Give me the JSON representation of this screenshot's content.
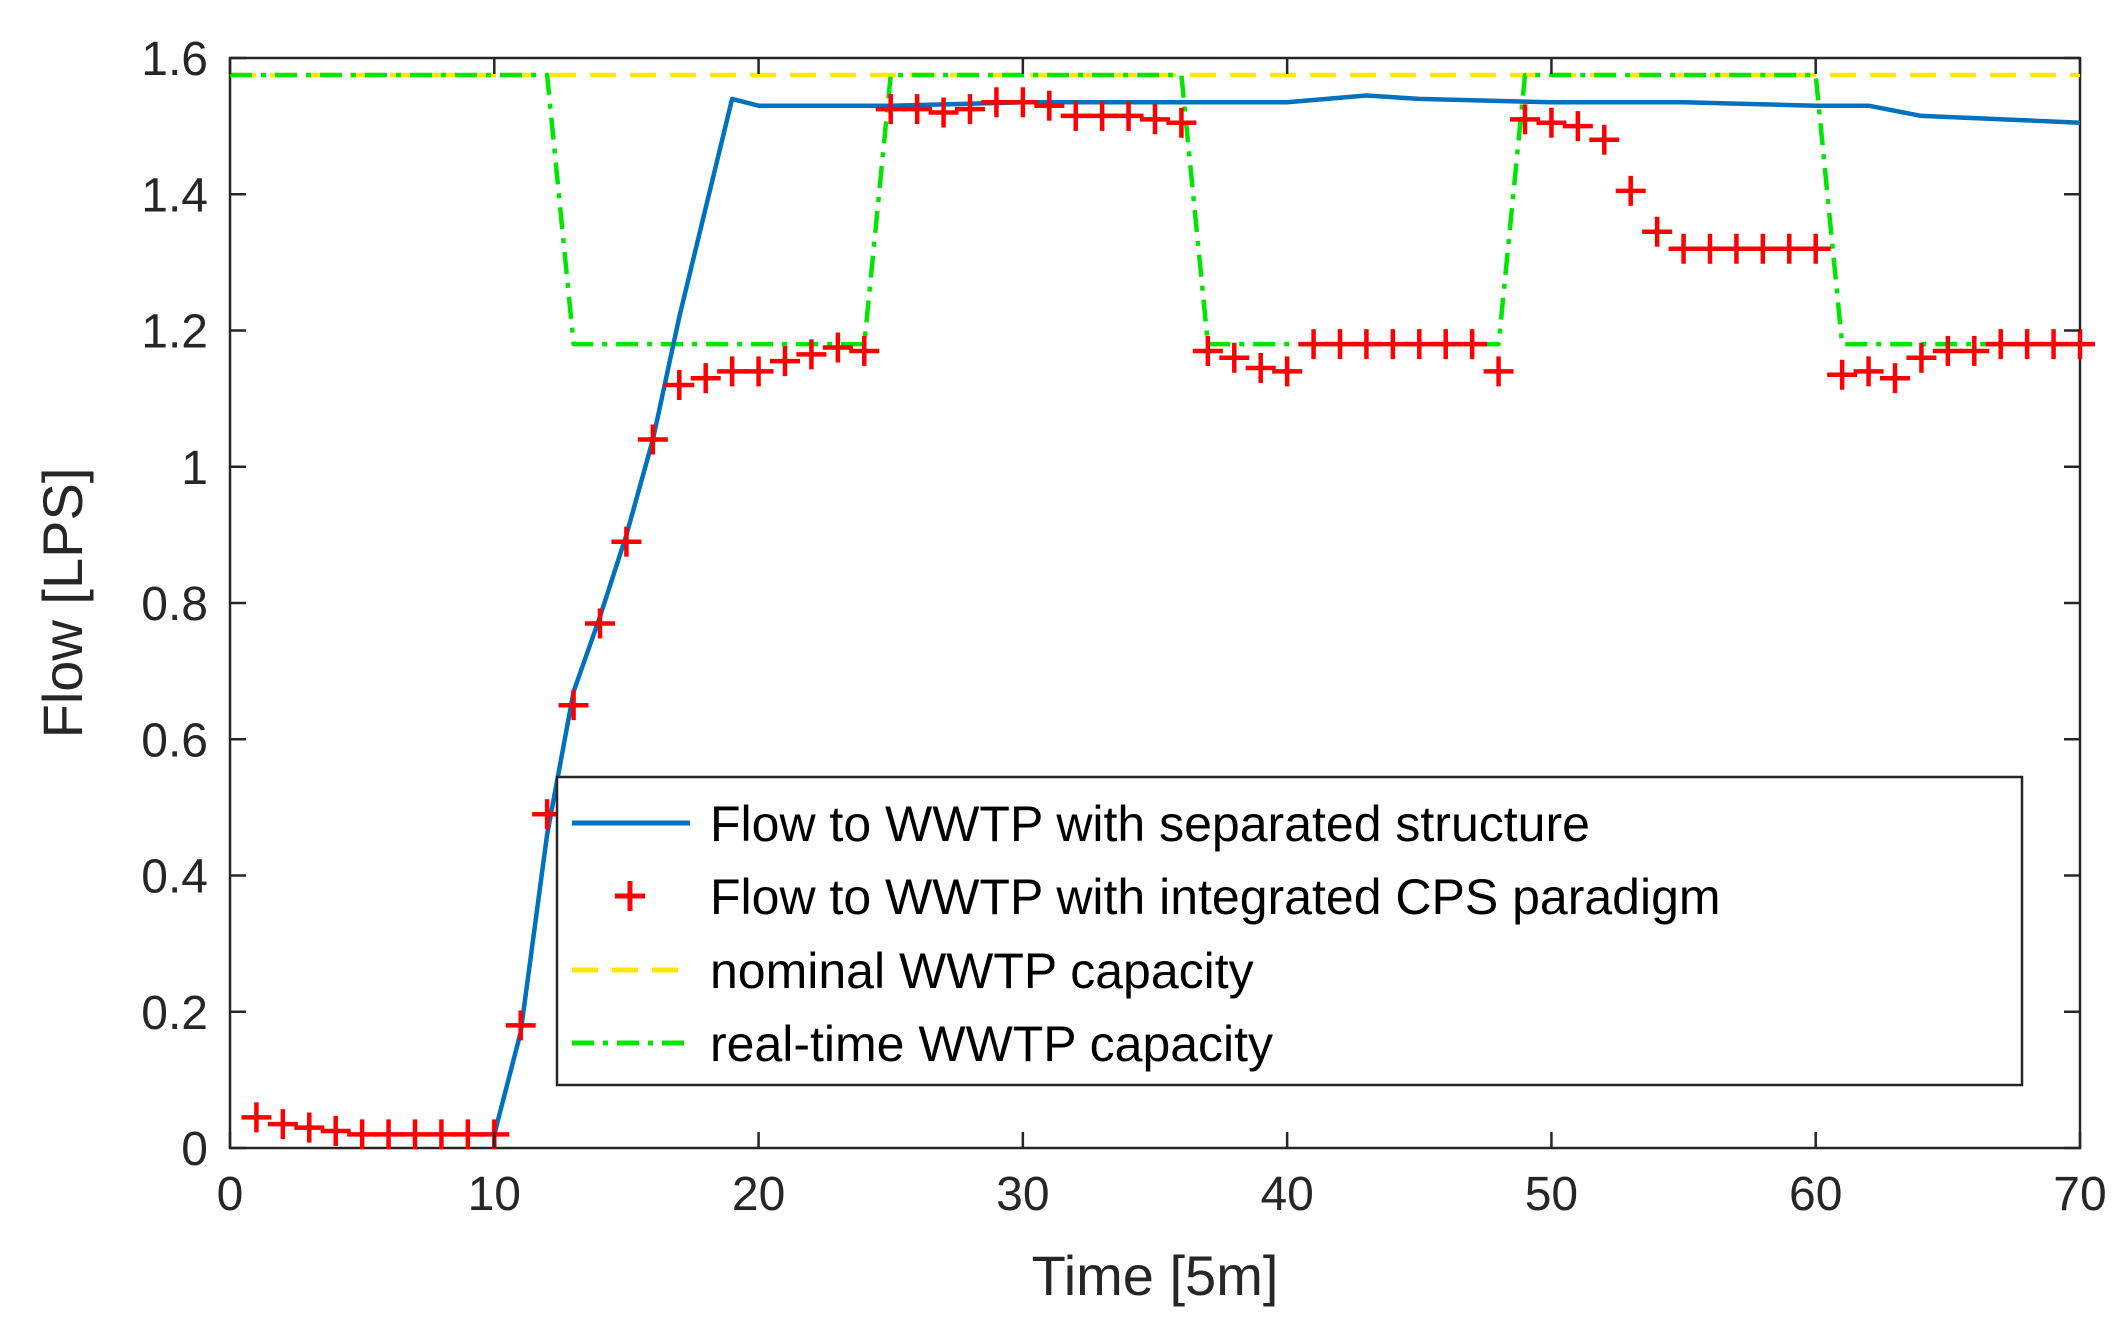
{
  "chart_data": {
    "type": "line",
    "title": "",
    "xlabel": "Time [5m]",
    "ylabel": "Flow [LPS]",
    "xlim": [
      0,
      70
    ],
    "ylim": [
      0,
      1.6
    ],
    "xticks": [
      0,
      10,
      20,
      30,
      40,
      50,
      60,
      70
    ],
    "yticks": [
      0,
      0.2,
      0.4,
      0.6,
      0.8,
      1,
      1.2,
      1.4,
      1.6
    ],
    "xtick_labels": [
      "0",
      "10",
      "20",
      "30",
      "40",
      "50",
      "60",
      "70"
    ],
    "ytick_labels": [
      "0",
      "0.2",
      "0.4",
      "0.6",
      "0.8",
      "1",
      "1.2",
      "1.4",
      "1.6"
    ],
    "grid": false,
    "legend_position": "bottom-center",
    "series": [
      {
        "name": "Flow to WWTP with separated structure",
        "style": "solid",
        "marker": "none",
        "color": "#0072BD",
        "x": [
          10,
          11,
          12,
          13,
          14,
          15,
          16,
          17,
          18,
          19,
          20,
          25,
          30,
          35,
          40,
          43,
          45,
          50,
          55,
          60,
          62,
          64,
          67,
          70
        ],
        "y": [
          0.02,
          0.17,
          0.46,
          0.67,
          0.78,
          0.9,
          1.04,
          1.22,
          1.38,
          1.54,
          1.53,
          1.53,
          1.535,
          1.535,
          1.535,
          1.545,
          1.54,
          1.535,
          1.535,
          1.53,
          1.53,
          1.515,
          1.51,
          1.505
        ]
      },
      {
        "name": "Flow to WWTP with integrated CPS paradigm",
        "style": "none",
        "marker": "+",
        "color": "#FF0000",
        "x": [
          1,
          2,
          3,
          4,
          5,
          6,
          7,
          8,
          9,
          10,
          11,
          12,
          13,
          14,
          15,
          16,
          17,
          18,
          19,
          20,
          21,
          22,
          23,
          24,
          25,
          26,
          27,
          28,
          29,
          30,
          31,
          32,
          33,
          34,
          35,
          36,
          37,
          38,
          39,
          40,
          41,
          42,
          43,
          44,
          45,
          46,
          47,
          48,
          49,
          50,
          51,
          52,
          53,
          54,
          55,
          56,
          57,
          58,
          59,
          60,
          61,
          62,
          63,
          64,
          65,
          66,
          67,
          68,
          69,
          70
        ],
        "y": [
          0.045,
          0.035,
          0.03,
          0.025,
          0.02,
          0.02,
          0.02,
          0.02,
          0.02,
          0.02,
          0.18,
          0.49,
          0.65,
          0.77,
          0.89,
          1.04,
          1.12,
          1.13,
          1.14,
          1.14,
          1.155,
          1.165,
          1.175,
          1.17,
          1.525,
          1.525,
          1.52,
          1.525,
          1.535,
          1.535,
          1.53,
          1.515,
          1.515,
          1.515,
          1.51,
          1.505,
          1.17,
          1.16,
          1.145,
          1.14,
          1.18,
          1.18,
          1.18,
          1.18,
          1.18,
          1.18,
          1.18,
          1.14,
          1.51,
          1.505,
          1.5,
          1.48,
          1.405,
          1.345,
          1.32,
          1.32,
          1.32,
          1.32,
          1.32,
          1.32,
          1.135,
          1.14,
          1.13,
          1.16,
          1.17,
          1.17,
          1.18,
          1.18,
          1.18,
          1.18
        ]
      },
      {
        "name": "nominal WWTP capacity",
        "style": "dashed",
        "marker": "none",
        "color": "#FFE800",
        "x": [
          0,
          70
        ],
        "y": [
          1.575,
          1.575
        ]
      },
      {
        "name": "real-time WWTP capacity",
        "style": "dashdot",
        "marker": "none",
        "color": "#00E600",
        "x": [
          0,
          12,
          13,
          24,
          25,
          36,
          37,
          48,
          49,
          60,
          61,
          70
        ],
        "y": [
          1.575,
          1.575,
          1.18,
          1.18,
          1.575,
          1.575,
          1.18,
          1.18,
          1.575,
          1.575,
          1.18,
          1.18
        ]
      }
    ]
  }
}
